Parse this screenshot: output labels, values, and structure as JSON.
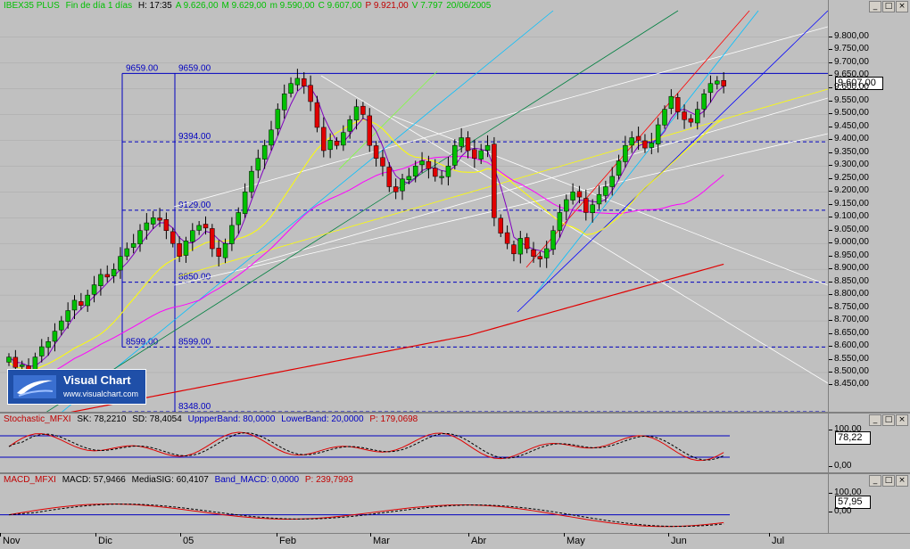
{
  "main": {
    "symbol": "IBEX35 PLUS",
    "period": "Fin de día 1 días",
    "fields": [
      {
        "k": "H:",
        "v": "17:35"
      },
      {
        "k": "A",
        "v": "9.626,00"
      },
      {
        "k": "M",
        "v": "9.629,00"
      },
      {
        "k": "m",
        "v": "9.590,00"
      },
      {
        "k": "C",
        "v": "9.607,00"
      },
      {
        "k": "P",
        "v": "9.921,00"
      },
      {
        "k": "V",
        "v": "7.797"
      },
      {
        "k": "",
        "v": "20/06/2005"
      }
    ],
    "last_value": "9.607,00",
    "y_ticks": [
      "9.800,00",
      "9.750,00",
      "9.700,00",
      "9.650,00",
      "9.600,00",
      "9.550,00",
      "9.500,00",
      "9.450,00",
      "9.400,00",
      "9.350,00",
      "9.300,00",
      "9.250,00",
      "9.200,00",
      "9.150,00",
      "9.100,00",
      "9.050,00",
      "9.000,00",
      "8.950,00",
      "8.900,00",
      "8.850,00",
      "8.800,00",
      "8.750,00",
      "8.700,00",
      "8.650,00",
      "8.600,00",
      "8.550,00",
      "8.500,00",
      "8.450,00"
    ],
    "levels": [
      {
        "v": 9659,
        "labels": [
          "9659.00",
          "9659.00"
        ]
      },
      {
        "v": 9394,
        "labels": [
          "9394.00"
        ]
      },
      {
        "v": 9129,
        "labels": [
          "9129.00"
        ]
      },
      {
        "v": 8850,
        "labels": [
          "8850.00"
        ]
      },
      {
        "v": 8599,
        "labels": [
          "8599.00",
          "8599.00"
        ]
      },
      {
        "v": 8348,
        "labels": [
          "8348.00"
        ]
      }
    ]
  },
  "stochastic": {
    "name": "Stochastic_MFXI",
    "sk": "SK: 78,2210",
    "sd": "SD: 78,4054",
    "upper": "UppperBand: 80,0000",
    "lower": "LowerBand: 20,0000",
    "p": "P: 179,0698",
    "last_value": "78,22",
    "y_ticks": [
      "100,00",
      "0,00"
    ]
  },
  "macd": {
    "name": "MACD_MFXI",
    "macd": "MACD: 57,9466",
    "signal": "MediaSIG: 60,4107",
    "band": "Band_MACD: 0,0000",
    "p": "P: 239,7993",
    "last_value": "57,95",
    "y_ticks": [
      "100,00",
      "0,00"
    ]
  },
  "x_axis": [
    "Nov",
    "Dic",
    "05",
    "Feb",
    "Mar",
    "Abr",
    "May",
    "Jun",
    "Jul"
  ],
  "logo": {
    "name": "Visual Chart",
    "url": "www.visualchart.com"
  },
  "window_buttons": [
    "_",
    "□",
    "×"
  ],
  "colors": {
    "up": "#00c000",
    "down": "#e00000",
    "level": "#0000c0",
    "plot_bg": "#c0c0c0",
    "grid": "#a8a8a8"
  },
  "chart_data": {
    "type": "candlestick",
    "title": "IBEX35 PLUS",
    "ylim": [
      8348,
      9840
    ],
    "series_close": [
      8560,
      8520,
      8530,
      8490,
      8560,
      8600,
      8620,
      8660,
      8700,
      8740,
      8780,
      8760,
      8800,
      8840,
      8880,
      8870,
      8900,
      8950,
      8980,
      9000,
      9050,
      9080,
      9100,
      9090,
      9050,
      9000,
      8950,
      9010,
      9050,
      9070,
      9060,
      8980,
      8950,
      9000,
      9070,
      9120,
      9200,
      9280,
      9330,
      9380,
      9440,
      9520,
      9580,
      9620,
      9640,
      9610,
      9550,
      9450,
      9360,
      9400,
      9380,
      9430,
      9480,
      9530,
      9500,
      9380,
      9330,
      9300,
      9220,
      9200,
      9250,
      9260,
      9300,
      9320,
      9290,
      9260,
      9260,
      9300,
      9380,
      9410,
      9360,
      9330,
      9360,
      9380,
      9100,
      9040,
      9000,
      8960,
      9020,
      8980,
      8950,
      8940,
      8980,
      9050,
      9120,
      9170,
      9200,
      9180,
      9120,
      9150,
      9190,
      9220,
      9260,
      9320,
      9380,
      9410,
      9400,
      9370,
      9390,
      9460,
      9520,
      9570,
      9510,
      9480,
      9470,
      9520,
      9580,
      9620,
      9630,
      9610
    ],
    "moving_averages": [
      "SMA 200 (red)",
      "SMA 50 (magenta)",
      "SMA 20 (yellow)",
      "SMA 5 (purple)"
    ],
    "horizontal_levels": [
      9659,
      9394,
      9129,
      8850,
      8599,
      8348
    ]
  }
}
